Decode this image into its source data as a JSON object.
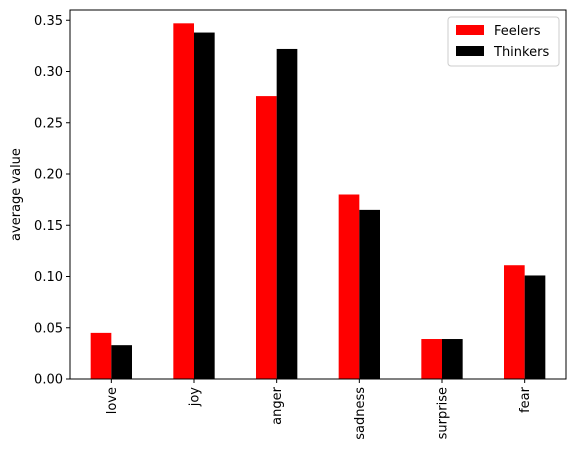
{
  "chart_data": {
    "type": "bar",
    "title": "",
    "xlabel": "",
    "ylabel": "average value",
    "ylim": [
      0,
      0.36
    ],
    "yticks": [
      0.0,
      0.05,
      0.1,
      0.15,
      0.2,
      0.25,
      0.3,
      0.35
    ],
    "ytick_labels": [
      "0.00",
      "0.05",
      "0.10",
      "0.15",
      "0.20",
      "0.25",
      "0.30",
      "0.35"
    ],
    "categories": [
      "love",
      "joy",
      "anger",
      "sadness",
      "surprise",
      "fear"
    ],
    "grid": false,
    "legend_position": "top-right",
    "series": [
      {
        "name": "Feelers",
        "color": "#ff0000",
        "values": [
          0.045,
          0.347,
          0.276,
          0.18,
          0.039,
          0.111
        ]
      },
      {
        "name": "Thinkers",
        "color": "#000000",
        "values": [
          0.033,
          0.338,
          0.322,
          0.165,
          0.039,
          0.101
        ]
      }
    ]
  }
}
